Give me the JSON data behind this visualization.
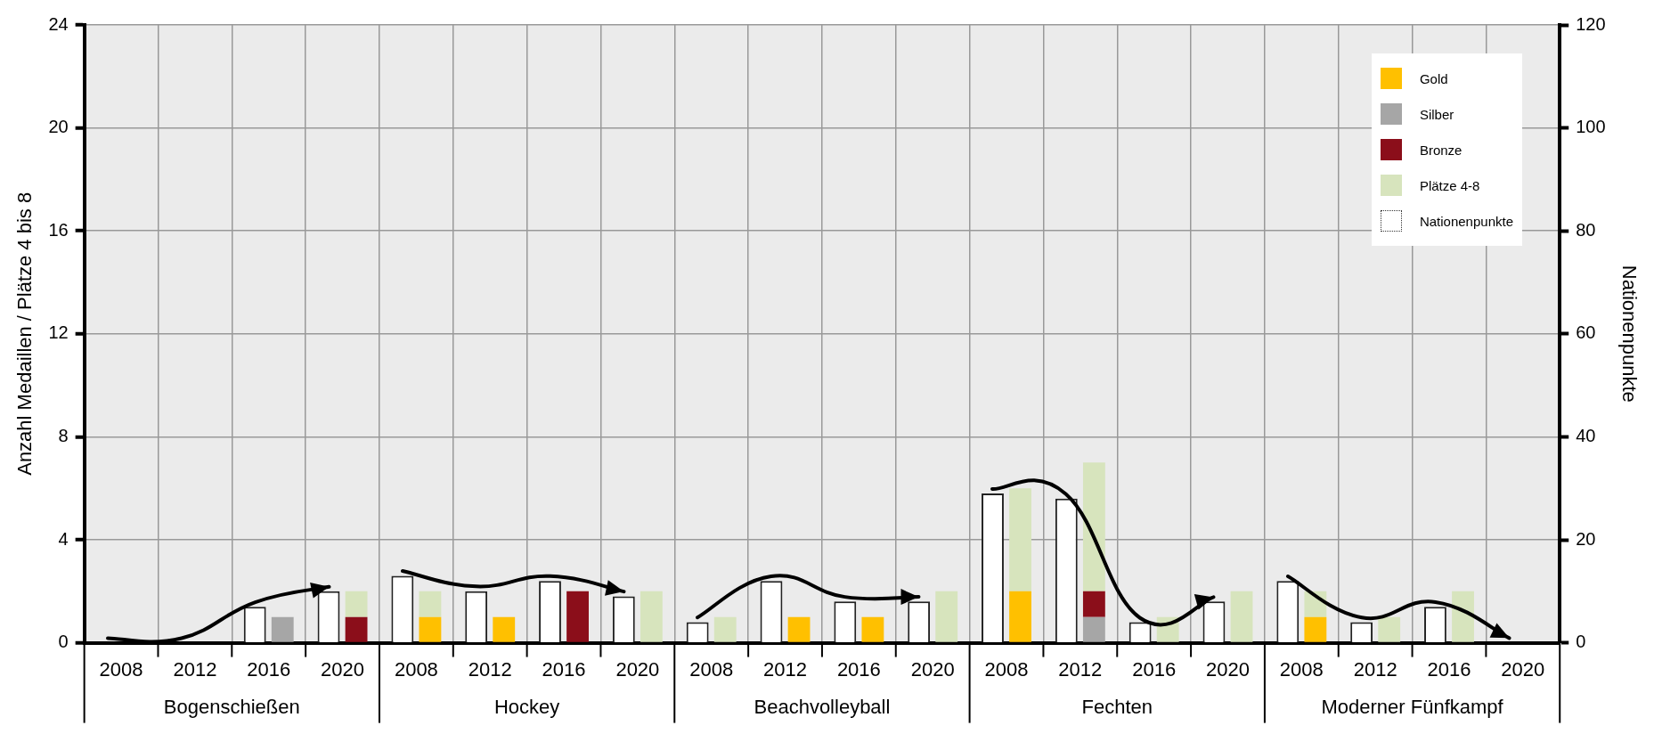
{
  "chart_data": {
    "type": "bar",
    "ylabel": "Anzahl Medaillen / Plätze 4 bis 8",
    "y2label": "Nationenpunkte",
    "categories": [
      "2008",
      "2012",
      "2016",
      "2020",
      "2008",
      "2012",
      "2016",
      "2020",
      "2008",
      "2012",
      "2016",
      "2020",
      "2008",
      "2012",
      "2016",
      "2020",
      "2008",
      "2012",
      "2016",
      "2020"
    ],
    "stacked": true,
    "grid": true,
    "legend": "top right",
    "ylim": [
      0,
      24
    ],
    "yticks": [
      0,
      4,
      8,
      12,
      16,
      20,
      24
    ],
    "y2lim": [
      0,
      120
    ],
    "y2ticks": [
      0,
      20,
      40,
      60,
      80,
      100,
      120
    ],
    "series": [
      {
        "name": "Gold",
        "color": "#ffc000",
        "values": [
          0,
          0,
          0,
          0,
          1,
          1,
          0,
          0,
          0,
          1,
          1,
          0,
          2,
          0,
          0,
          0,
          1,
          0,
          0,
          0
        ]
      },
      {
        "name": "Silber",
        "color": "#a6a6a6",
        "values": [
          0,
          0,
          1,
          0,
          0,
          0,
          0,
          0,
          0,
          0,
          0,
          0,
          0,
          1,
          0,
          0,
          0,
          0,
          0,
          0
        ]
      },
      {
        "name": "Bronze",
        "color": "#8b0e1a",
        "values": [
          0,
          0,
          0,
          1,
          0,
          0,
          2,
          0,
          0,
          0,
          0,
          0,
          0,
          1,
          0,
          0,
          0,
          0,
          0,
          0
        ]
      },
      {
        "name": "Plätze 4-8",
        "color": "#d7e4bd",
        "values": [
          0,
          0,
          0,
          1,
          1,
          0,
          0,
          2,
          1,
          0,
          0,
          2,
          4,
          5,
          1,
          2,
          1,
          1,
          2,
          0
        ]
      },
      {
        "name": "Nationenpunkte",
        "color": "#ffffff",
        "axis": "y2",
        "values": [
          0,
          0,
          7,
          10,
          13,
          10,
          12,
          9,
          4,
          12,
          8,
          8,
          29,
          28,
          4,
          8,
          12,
          4,
          7,
          0
        ]
      }
    ],
    "annotations": [
      "Bogenschießen",
      "Hockey",
      "Beachvolleyball",
      "Fechten",
      "Moderner Fünfkampf"
    ]
  }
}
